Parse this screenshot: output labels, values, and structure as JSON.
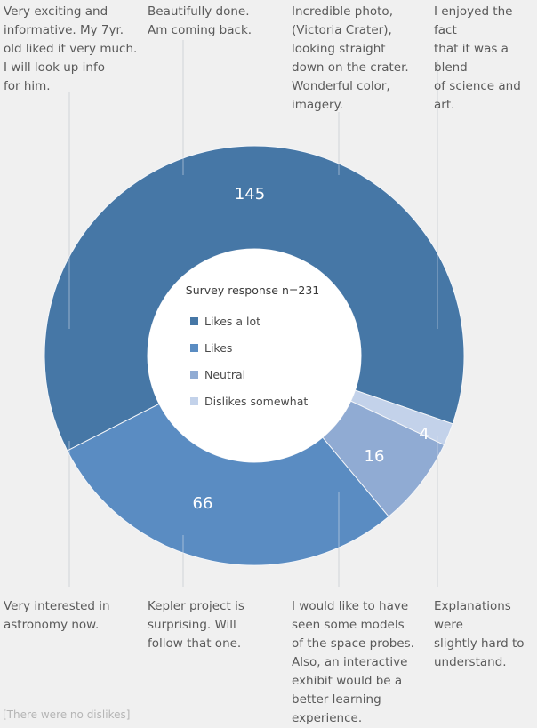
{
  "chart_data": {
    "type": "pie",
    "subtype": "donut",
    "title": "Survey response n=231",
    "categories": [
      "Likes a lot",
      "Likes",
      "Neutral",
      "Dislikes somewhat"
    ],
    "values": [
      145,
      66,
      16,
      4
    ],
    "total": 231,
    "colors": [
      "#4677a6",
      "#5a8cc2",
      "#90abd3",
      "#c3d2ea"
    ],
    "legend_placement": "center",
    "data_labels": [
      "145",
      "66",
      "16",
      "4"
    ]
  },
  "comments": [
    {
      "text": "Very exciting and\ninformative. My 7yr.\nold liked it very much.\nI will look up info\nfor him."
    },
    {
      "text": "Beautifully done.\nAm coming back."
    },
    {
      "text": "Incredible photo,\n(Victoria Crater),\nlooking straight\ndown on the crater.\nWonderful color,\nimagery."
    },
    {
      "text": "I enjoyed the fact\nthat it was a blend\nof science and art."
    },
    {
      "text": "Very interested in\nastronomy now."
    },
    {
      "text": "Kepler project is\nsurprising. Will\nfollow that one."
    },
    {
      "text": "I would like to have\nseen some models\nof the space probes.\nAlso, an interactive\nexhibit would be a\nbetter learning\nexperience."
    },
    {
      "text": "Explanations were\nslightly hard to\nunderstand."
    }
  ],
  "note": "[There were no dislikes]"
}
